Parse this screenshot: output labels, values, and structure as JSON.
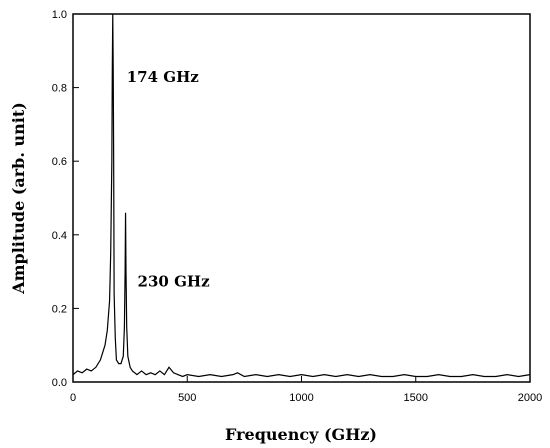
{
  "chart_data": {
    "type": "line",
    "title": "",
    "xlabel": "Frequency (GHz)",
    "ylabel": "Amplitude (arb. unit)",
    "xlim": [
      0,
      2000
    ],
    "ylim": [
      0.0,
      1.0
    ],
    "x_ticks": [
      0,
      500,
      1000,
      1500,
      2000
    ],
    "y_ticks": [
      0.0,
      0.2,
      0.4,
      0.6,
      0.8,
      1.0
    ],
    "x_tick_labels": [
      "0",
      "500",
      "1000",
      "1500",
      "2000"
    ],
    "y_tick_labels": [
      "0.0",
      "0.2",
      "0.4",
      "0.6",
      "0.8",
      "1.0"
    ],
    "grid": false,
    "line_color": "#000000",
    "series": [
      {
        "x": [
          0,
          20,
          40,
          60,
          80,
          100,
          120,
          140,
          150,
          160,
          165,
          170,
          172,
          174,
          176,
          178,
          180,
          185,
          190,
          200,
          210,
          220,
          225,
          228,
          230,
          232,
          235,
          240,
          250,
          260,
          280,
          300,
          320,
          340,
          360,
          380,
          400,
          420,
          440,
          460,
          480,
          500,
          550,
          600,
          650,
          700,
          720,
          750,
          800,
          850,
          900,
          950,
          1000,
          1050,
          1100,
          1150,
          1200,
          1250,
          1300,
          1350,
          1400,
          1450,
          1500,
          1550,
          1600,
          1650,
          1700,
          1750,
          1800,
          1850,
          1900,
          1950,
          2000
        ],
        "y": [
          0.02,
          0.03,
          0.025,
          0.035,
          0.03,
          0.04,
          0.06,
          0.1,
          0.14,
          0.22,
          0.35,
          0.6,
          0.85,
          1.0,
          0.85,
          0.6,
          0.24,
          0.12,
          0.06,
          0.05,
          0.05,
          0.07,
          0.15,
          0.3,
          0.46,
          0.3,
          0.15,
          0.07,
          0.04,
          0.03,
          0.02,
          0.03,
          0.02,
          0.025,
          0.02,
          0.03,
          0.02,
          0.04,
          0.025,
          0.02,
          0.015,
          0.02,
          0.015,
          0.02,
          0.015,
          0.02,
          0.025,
          0.015,
          0.02,
          0.015,
          0.02,
          0.015,
          0.02,
          0.015,
          0.02,
          0.015,
          0.02,
          0.015,
          0.02,
          0.015,
          0.015,
          0.02,
          0.015,
          0.015,
          0.02,
          0.015,
          0.015,
          0.02,
          0.015,
          0.015,
          0.02,
          0.015,
          0.02
        ]
      }
    ],
    "annotations": [
      {
        "text": "174 GHz",
        "x": 174,
        "y": 1.0
      },
      {
        "text": "230 GHz",
        "x": 230,
        "y": 0.46
      }
    ]
  }
}
